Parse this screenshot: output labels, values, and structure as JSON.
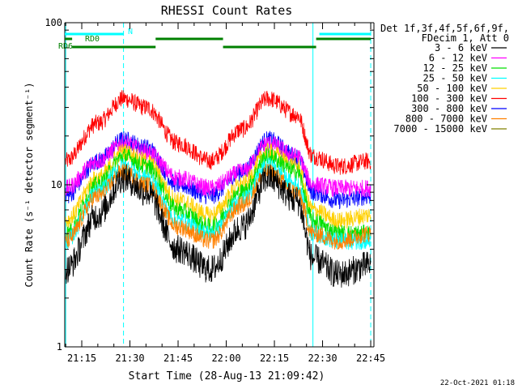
{
  "chart_data": {
    "type": "line",
    "title": "RHESSI Count Rates",
    "xlabel": "Start Time (28-Aug-13 21:09:42)",
    "ylabel": "Count Rate (s⁻¹ detector segment⁻¹)",
    "y_scale": "log",
    "ylim": [
      1,
      100
    ],
    "y_ticks": [
      {
        "value": 1,
        "label": "1"
      },
      {
        "value": 10,
        "label": "10"
      },
      {
        "value": 100,
        "label": "100"
      }
    ],
    "x_start": "21:09:42",
    "xlim": [
      "21:09:42",
      "22:46:00"
    ],
    "x_ticks": [
      "21:15",
      "21:30",
      "21:45",
      "22:00",
      "22:15",
      "22:30",
      "22:45"
    ],
    "legend": {
      "placement": "right",
      "header_lines": [
        "Det 1f,3f,4f,5f,6f,9f,",
        "FDecim 1, Att 0"
      ]
    },
    "series": [
      {
        "name": "3 - 6 keV",
        "color": "#000000",
        "x": [
          "21:10",
          "21:20",
          "21:28",
          "21:35",
          "21:45",
          "21:55",
          "22:05",
          "22:13",
          "22:22",
          "22:27",
          "22:35",
          "22:45"
        ],
        "y": [
          3.0,
          6.5,
          11,
          9.0,
          4.0,
          3.0,
          5.5,
          11,
          8.0,
          3.5,
          2.8,
          3.2
        ]
      },
      {
        "name": "6 - 12 keV",
        "color": "#ff00ff",
        "x": [
          "21:10",
          "21:20",
          "21:28",
          "21:35",
          "21:45",
          "21:55",
          "22:05",
          "22:13",
          "22:22",
          "22:27",
          "22:35",
          "22:45"
        ],
        "y": [
          9.5,
          14,
          18,
          16,
          11,
          9.5,
          12,
          18,
          15,
          10,
          9.5,
          9.5
        ]
      },
      {
        "name": "12 - 25 keV",
        "color": "#00e000",
        "x": [
          "21:10",
          "21:20",
          "21:28",
          "21:35",
          "21:45",
          "21:55",
          "22:05",
          "22:13",
          "22:22",
          "22:27",
          "22:35",
          "22:45"
        ],
        "y": [
          5.0,
          10,
          15,
          13,
          7.0,
          5.5,
          9.0,
          15,
          12,
          6.0,
          5.0,
          5.0
        ]
      },
      {
        "name": "25 - 50 keV",
        "color": "#00ffff",
        "x": [
          "21:10",
          "21:20",
          "21:28",
          "21:35",
          "21:45",
          "21:55",
          "22:05",
          "22:13",
          "22:22",
          "22:27",
          "22:35",
          "22:45"
        ],
        "y": [
          4.5,
          9.0,
          13,
          11,
          6.0,
          5.0,
          8.0,
          13,
          10,
          5.0,
          4.5,
          4.5
        ]
      },
      {
        "name": "50 - 100 keV",
        "color": "#ffd000",
        "x": [
          "21:10",
          "21:20",
          "21:28",
          "21:35",
          "21:45",
          "21:55",
          "22:05",
          "22:13",
          "22:22",
          "22:27",
          "22:35",
          "22:45"
        ],
        "y": [
          6.0,
          11,
          16,
          14,
          8.0,
          6.5,
          10,
          16,
          13,
          7.0,
          6.0,
          6.5
        ]
      },
      {
        "name": "100 - 300 keV",
        "color": "#ff0000",
        "x": [
          "21:10",
          "21:20",
          "21:28",
          "21:35",
          "21:45",
          "21:55",
          "22:05",
          "22:13",
          "22:22",
          "22:27",
          "22:35",
          "22:45"
        ],
        "y": [
          14,
          24,
          34,
          30,
          18,
          14,
          22,
          34,
          27,
          15,
          13,
          14
        ]
      },
      {
        "name": "300 - 800 keV",
        "color": "#0000ff",
        "x": [
          "21:10",
          "21:20",
          "21:28",
          "21:35",
          "21:45",
          "21:55",
          "22:05",
          "22:13",
          "22:22",
          "22:27",
          "22:35",
          "22:45"
        ],
        "y": [
          8.5,
          14,
          19,
          17,
          10,
          8.5,
          12,
          19,
          15,
          9.0,
          8.0,
          8.5
        ]
      },
      {
        "name": "800 - 7000 keV",
        "color": "#ff8000",
        "x": [
          "21:10",
          "21:20",
          "21:28",
          "21:35",
          "21:45",
          "21:55",
          "22:05",
          "22:13",
          "22:22",
          "22:27",
          "22:35",
          "22:45"
        ],
        "y": [
          4.5,
          8.5,
          12,
          10,
          5.5,
          4.5,
          7.5,
          12,
          9.0,
          5.0,
          4.5,
          5.0
        ]
      },
      {
        "name": "7000 - 15000 keV",
        "color": "#808000",
        "x": [],
        "y": []
      }
    ],
    "attenuator_markers": [
      {
        "label": "N",
        "color": "#00ffff",
        "bars": [
          [
            "21:09:42",
            "21:28"
          ],
          [
            "22:29",
            "22:45"
          ]
        ]
      },
      {
        "label": "RD0",
        "color": "#008000",
        "bars": [
          [
            "21:09:42",
            "21:12"
          ],
          [
            "21:38",
            "21:59"
          ],
          [
            "22:28",
            "22:45"
          ]
        ]
      },
      {
        "label": "RD6",
        "color": "#008000",
        "bars": [
          [
            "21:12",
            "21:38"
          ],
          [
            "21:59",
            "22:28"
          ]
        ]
      }
    ],
    "vertical_lines": [
      {
        "time": "21:10",
        "color": "#00ffff",
        "style": "solid"
      },
      {
        "time": "21:28",
        "color": "#00ffff",
        "style": "dashed"
      },
      {
        "time": "22:27",
        "color": "#00ffff",
        "style": "solid"
      },
      {
        "time": "22:45",
        "color": "#00ffff",
        "style": "dashed"
      }
    ],
    "footer": "22-Oct-2021 01:18"
  }
}
